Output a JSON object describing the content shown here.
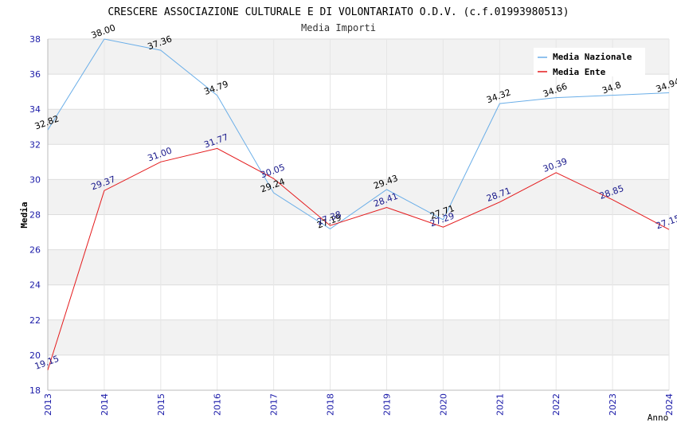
{
  "chart_data": {
    "type": "line",
    "title": "CRESCERE ASSOCIAZIONE CULTURALE E DI VOLONTARIATO O.D.V. (c.f.01993980513)",
    "subtitle": "Media Importi",
    "xlabel": "Anno",
    "ylabel": "Media",
    "ylim": [
      18,
      38
    ],
    "yticks": [
      18,
      20,
      22,
      24,
      26,
      28,
      30,
      32,
      34,
      36,
      38
    ],
    "x": [
      "2013",
      "2014",
      "2015",
      "2016",
      "2017",
      "2018",
      "2019",
      "2020",
      "2021",
      "2022",
      "2023",
      "2024"
    ],
    "grid": true,
    "legend_position": "top-right",
    "series": [
      {
        "name": "Media Nazionale",
        "color": "#6aaee8",
        "label_color": "#000000",
        "values": [
          32.82,
          38.0,
          37.36,
          34.79,
          29.24,
          27.19,
          29.43,
          27.71,
          34.32,
          34.66,
          34.8,
          34.94
        ],
        "labels": [
          "32.82",
          "38.00",
          "37.36",
          "34.79",
          "29.24",
          "27.19",
          "29.43",
          "27.71",
          "34.32",
          "34.66",
          "34.8",
          "34.94"
        ]
      },
      {
        "name": "Media Ente",
        "color": "#e41a1c",
        "label_color": "#1a1a8c",
        "values": [
          19.15,
          29.37,
          31.0,
          31.77,
          30.05,
          27.38,
          28.41,
          27.29,
          28.71,
          30.39,
          28.85,
          27.15
        ],
        "labels": [
          "19.15",
          "29.37",
          "31.00",
          "31.77",
          "30.05",
          "27.38",
          "28.41",
          "27.29",
          "28.71",
          "30.39",
          "28.85",
          "27.15"
        ]
      }
    ]
  }
}
